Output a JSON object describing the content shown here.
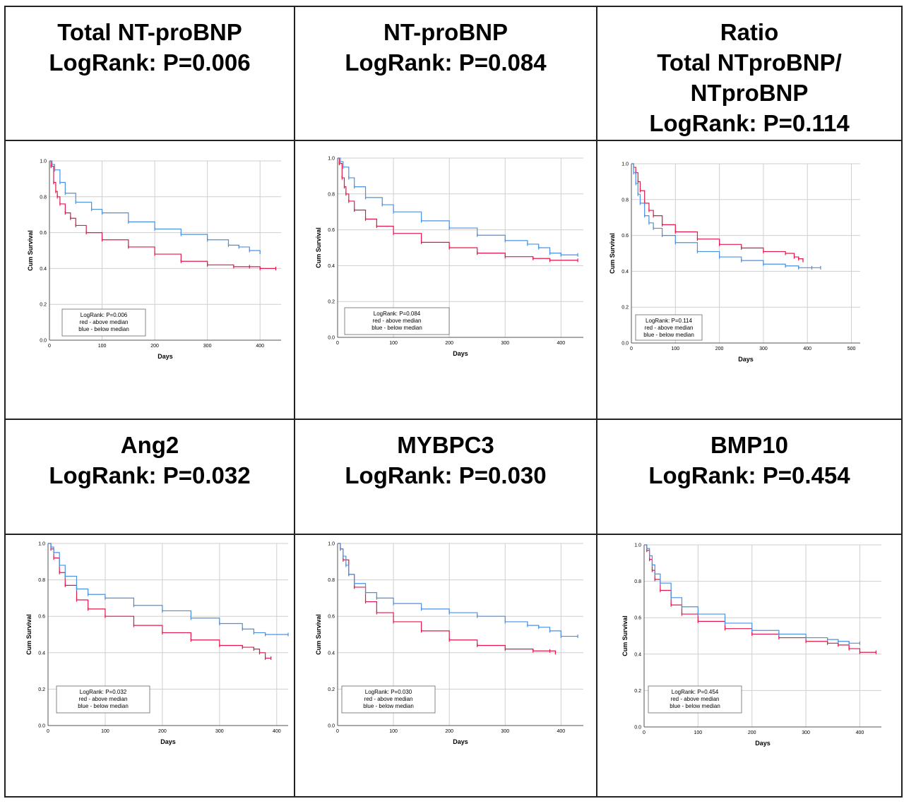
{
  "panels": [
    {
      "title_lines": [
        "Total NT-proBNP",
        "LogRank: P=0.006"
      ],
      "legend": [
        "LogRank: P=0.006",
        "red - above median",
        "blue - below median"
      ]
    },
    {
      "title_lines": [
        "NT-proBNP",
        "LogRank: P=0.084"
      ],
      "legend": [
        "LogRank: P=0.084",
        "red - above median",
        "blue - below median"
      ]
    },
    {
      "title_lines": [
        "Ratio",
        "Total NTproBNP/",
        "NTproBNP",
        "LogRank: P=0.114"
      ],
      "legend": [
        "LogRank: P=0.114",
        "red - above median",
        "blue - below median"
      ]
    },
    {
      "title_lines": [
        "Ang2",
        "LogRank: P=0.032"
      ],
      "legend": [
        "LogRank: P=0.032",
        "red - above median",
        "blue - below median"
      ]
    },
    {
      "title_lines": [
        "MYBPC3",
        "LogRank: P=0.030"
      ],
      "legend": [
        "LogRank: P=0.030",
        "red - above median",
        "blue - below median"
      ]
    },
    {
      "title_lines": [
        "BMP10",
        "LogRank: P=0.454"
      ],
      "legend": [
        "LogRank: P=0.454",
        "red - above median",
        "blue - below median"
      ]
    }
  ],
  "colors": {
    "red": "#e0194a",
    "blue": "#4a90e2"
  },
  "chart_data": [
    {
      "type": "line",
      "xlabel": "Days",
      "ylabel": "Cum Survival",
      "xlim": [
        0,
        440
      ],
      "ylim": [
        0,
        1.0
      ],
      "xticks": [
        0,
        100,
        200,
        300,
        400
      ],
      "yticks": [
        0.0,
        0.2,
        0.4,
        0.6,
        0.8,
        1.0
      ],
      "series": [
        {
          "color": "red",
          "x": [
            0,
            3,
            8,
            12,
            15,
            20,
            30,
            40,
            50,
            70,
            100,
            150,
            200,
            250,
            300,
            350,
            380,
            400,
            430
          ],
          "y": [
            1.0,
            0.97,
            0.88,
            0.83,
            0.8,
            0.76,
            0.71,
            0.68,
            0.64,
            0.6,
            0.56,
            0.52,
            0.48,
            0.44,
            0.42,
            0.41,
            0.41,
            0.4,
            0.4
          ]
        },
        {
          "color": "blue",
          "x": [
            0,
            5,
            10,
            20,
            30,
            50,
            80,
            100,
            150,
            200,
            250,
            300,
            340,
            360,
            380,
            400
          ],
          "y": [
            1.0,
            0.98,
            0.95,
            0.88,
            0.82,
            0.77,
            0.73,
            0.71,
            0.66,
            0.62,
            0.59,
            0.56,
            0.53,
            0.52,
            0.5,
            0.49
          ]
        }
      ]
    },
    {
      "type": "line",
      "xlabel": "Days",
      "ylabel": "Cum Survival",
      "xlim": [
        0,
        440
      ],
      "ylim": [
        0,
        1.0
      ],
      "xticks": [
        0,
        100,
        200,
        300,
        400
      ],
      "yticks": [
        0.0,
        0.2,
        0.4,
        0.6,
        0.8,
        1.0
      ],
      "series": [
        {
          "color": "red",
          "x": [
            0,
            3,
            8,
            12,
            15,
            20,
            30,
            50,
            70,
            100,
            150,
            200,
            250,
            300,
            350,
            380,
            430
          ],
          "y": [
            1.0,
            0.97,
            0.89,
            0.84,
            0.8,
            0.76,
            0.71,
            0.66,
            0.62,
            0.58,
            0.53,
            0.5,
            0.47,
            0.45,
            0.44,
            0.43,
            0.43
          ]
        },
        {
          "color": "blue",
          "x": [
            0,
            5,
            10,
            20,
            30,
            50,
            80,
            100,
            150,
            200,
            250,
            300,
            340,
            360,
            380,
            400,
            430
          ],
          "y": [
            1.0,
            0.98,
            0.95,
            0.89,
            0.84,
            0.78,
            0.74,
            0.7,
            0.65,
            0.61,
            0.57,
            0.54,
            0.52,
            0.5,
            0.47,
            0.46,
            0.46
          ]
        }
      ]
    },
    {
      "type": "line",
      "xlabel": "Days",
      "ylabel": "Cum Survival",
      "xlim": [
        0,
        520
      ],
      "ylim": [
        0,
        1.0
      ],
      "xticks": [
        0,
        100,
        200,
        300,
        400,
        500
      ],
      "yticks": [
        0.0,
        0.2,
        0.4,
        0.6,
        0.8,
        1.0
      ],
      "series": [
        {
          "color": "red",
          "x": [
            0,
            5,
            10,
            15,
            20,
            30,
            40,
            50,
            70,
            100,
            150,
            200,
            250,
            300,
            350,
            370,
            380,
            390
          ],
          "y": [
            1.0,
            0.98,
            0.95,
            0.9,
            0.85,
            0.78,
            0.74,
            0.71,
            0.66,
            0.62,
            0.58,
            0.55,
            0.53,
            0.51,
            0.5,
            0.48,
            0.47,
            0.46
          ]
        },
        {
          "color": "blue",
          "x": [
            0,
            5,
            10,
            15,
            20,
            30,
            40,
            50,
            70,
            100,
            150,
            200,
            250,
            300,
            350,
            380,
            410,
            430
          ],
          "y": [
            1.0,
            0.95,
            0.89,
            0.83,
            0.78,
            0.71,
            0.67,
            0.64,
            0.6,
            0.56,
            0.51,
            0.48,
            0.46,
            0.44,
            0.43,
            0.42,
            0.42,
            0.42
          ]
        }
      ]
    },
    {
      "type": "line",
      "xlabel": "Days",
      "ylabel": "Cum Survival",
      "xlim": [
        0,
        420
      ],
      "ylim": [
        0,
        1.0
      ],
      "xticks": [
        0,
        100,
        200,
        300,
        400
      ],
      "yticks": [
        0.0,
        0.2,
        0.4,
        0.6,
        0.8,
        1.0
      ],
      "series": [
        {
          "color": "red",
          "x": [
            0,
            5,
            10,
            20,
            30,
            50,
            70,
            100,
            150,
            200,
            250,
            300,
            340,
            360,
            370,
            380,
            390
          ],
          "y": [
            1.0,
            0.97,
            0.92,
            0.84,
            0.77,
            0.69,
            0.64,
            0.6,
            0.55,
            0.51,
            0.47,
            0.44,
            0.43,
            0.42,
            0.4,
            0.37,
            0.37
          ]
        },
        {
          "color": "blue",
          "x": [
            0,
            5,
            10,
            20,
            30,
            50,
            70,
            100,
            150,
            200,
            250,
            300,
            340,
            360,
            380,
            420
          ],
          "y": [
            1.0,
            0.98,
            0.95,
            0.88,
            0.82,
            0.75,
            0.72,
            0.7,
            0.66,
            0.63,
            0.59,
            0.56,
            0.53,
            0.51,
            0.5,
            0.5
          ]
        }
      ]
    },
    {
      "type": "line",
      "xlabel": "Days",
      "ylabel": "Cum Survival",
      "xlim": [
        0,
        440
      ],
      "ylim": [
        0,
        1.0
      ],
      "xticks": [
        0,
        100,
        200,
        300,
        400
      ],
      "yticks": [
        0.0,
        0.2,
        0.4,
        0.6,
        0.8,
        1.0
      ],
      "series": [
        {
          "color": "red",
          "x": [
            0,
            5,
            10,
            20,
            30,
            50,
            70,
            100,
            150,
            200,
            250,
            300,
            350,
            380,
            390
          ],
          "y": [
            1.0,
            0.97,
            0.91,
            0.83,
            0.76,
            0.68,
            0.62,
            0.57,
            0.52,
            0.47,
            0.44,
            0.42,
            0.41,
            0.41,
            0.4
          ]
        },
        {
          "color": "blue",
          "x": [
            0,
            5,
            10,
            15,
            20,
            30,
            50,
            70,
            100,
            150,
            200,
            250,
            300,
            340,
            360,
            380,
            400,
            430
          ],
          "y": [
            1.0,
            0.97,
            0.93,
            0.88,
            0.83,
            0.78,
            0.73,
            0.7,
            0.67,
            0.64,
            0.62,
            0.6,
            0.57,
            0.55,
            0.54,
            0.52,
            0.49,
            0.49
          ]
        }
      ]
    },
    {
      "type": "line",
      "xlabel": "Days",
      "ylabel": "Cum Survival",
      "xlim": [
        0,
        440
      ],
      "ylim": [
        0,
        1.0
      ],
      "xticks": [
        0,
        100,
        200,
        300,
        400
      ],
      "yticks": [
        0.0,
        0.2,
        0.4,
        0.6,
        0.8,
        1.0
      ],
      "series": [
        {
          "color": "red",
          "x": [
            0,
            5,
            10,
            15,
            20,
            30,
            50,
            70,
            100,
            150,
            200,
            250,
            300,
            340,
            360,
            380,
            400,
            430
          ],
          "y": [
            1.0,
            0.97,
            0.92,
            0.86,
            0.81,
            0.75,
            0.67,
            0.62,
            0.58,
            0.54,
            0.51,
            0.49,
            0.47,
            0.46,
            0.45,
            0.43,
            0.41,
            0.41
          ]
        },
        {
          "color": "blue",
          "x": [
            0,
            5,
            10,
            15,
            20,
            30,
            50,
            70,
            100,
            150,
            200,
            250,
            300,
            340,
            360,
            380,
            400
          ],
          "y": [
            1.0,
            0.98,
            0.94,
            0.89,
            0.84,
            0.79,
            0.71,
            0.66,
            0.62,
            0.57,
            0.53,
            0.51,
            0.49,
            0.48,
            0.47,
            0.46,
            0.46
          ]
        }
      ]
    }
  ]
}
